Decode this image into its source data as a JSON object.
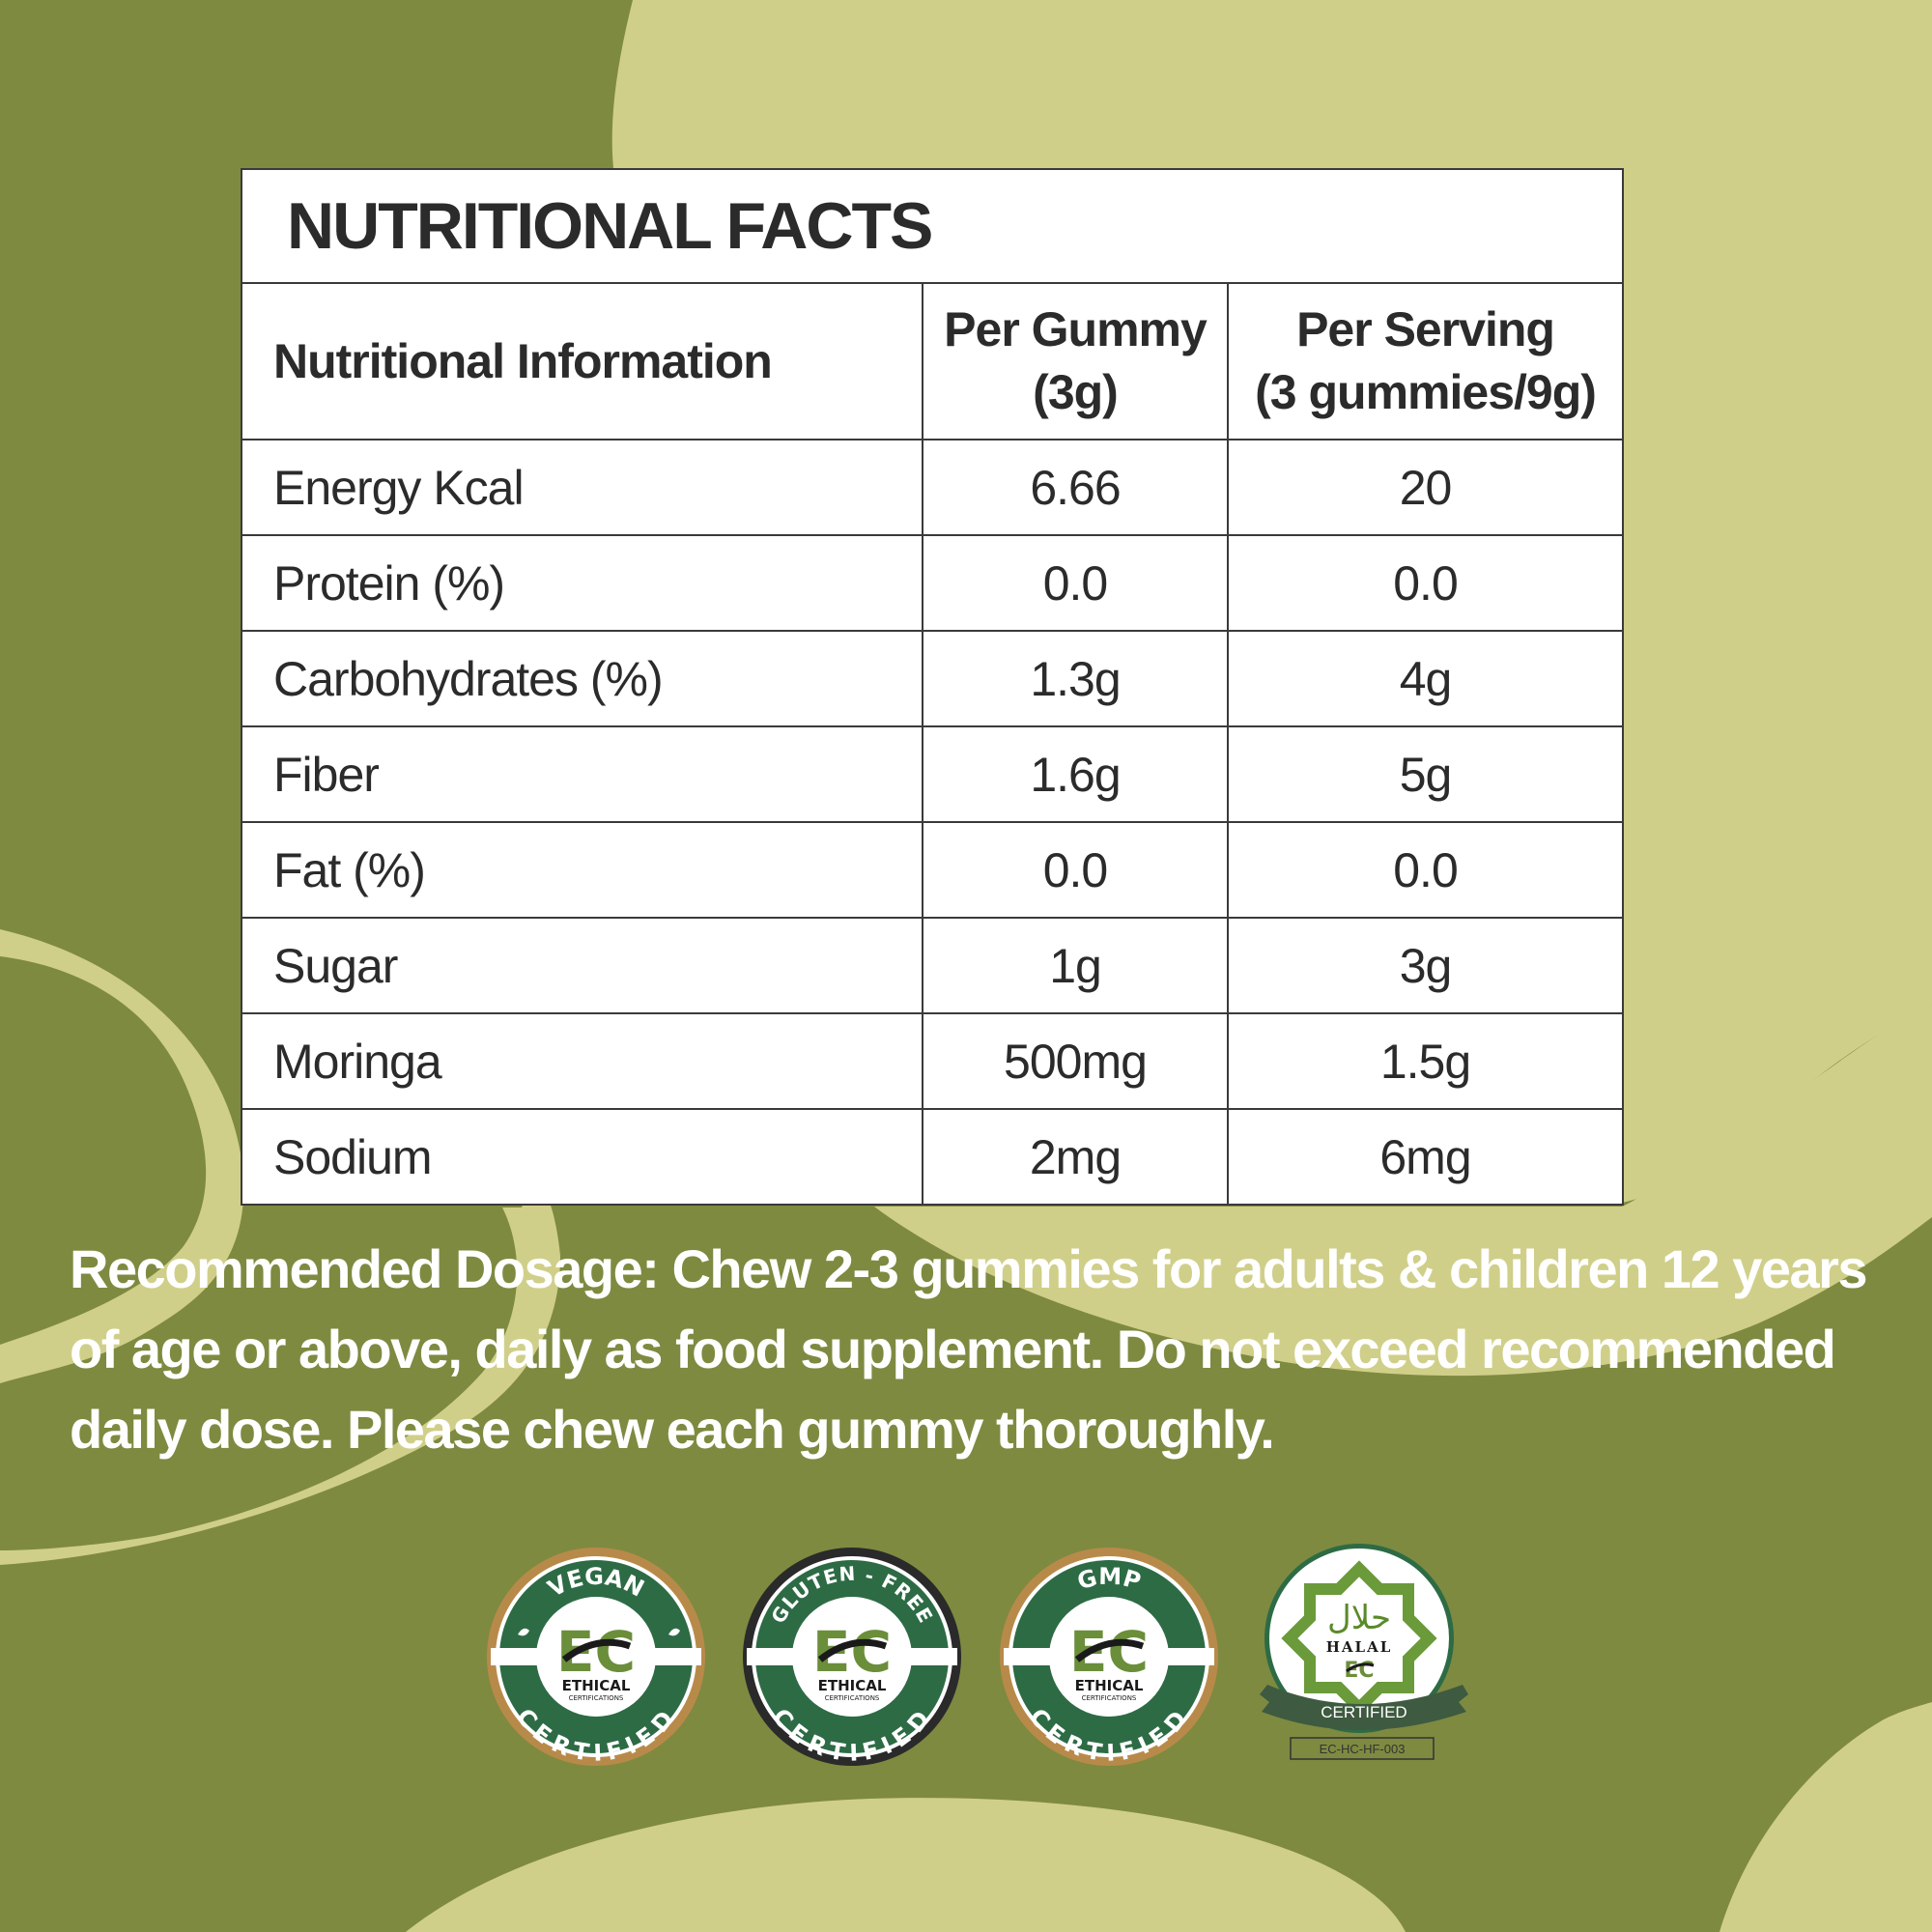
{
  "title": "NUTRITIONAL FACTS",
  "columns": {
    "info": "Nutritional Information",
    "per_gummy_line1": "Per Gummy",
    "per_gummy_line2": "(3g)",
    "per_serving_line1": "Per Serving",
    "per_serving_line2": "(3 gummies/9g)"
  },
  "rows": [
    {
      "label": "Energy Kcal",
      "per_gummy": "6.66",
      "per_serving": "20"
    },
    {
      "label": "Protein (%)",
      "per_gummy": "0.0",
      "per_serving": "0.0"
    },
    {
      "label": "Carbohydrates (%)",
      "per_gummy": "1.3g",
      "per_serving": "4g"
    },
    {
      "label": "Fiber",
      "per_gummy": "1.6g",
      "per_serving": "5g"
    },
    {
      "label": "Fat (%)",
      "per_gummy": "0.0",
      "per_serving": "0.0"
    },
    {
      "label": "Sugar",
      "per_gummy": "1g",
      "per_serving": "3g"
    },
    {
      "label": "Moringa",
      "per_gummy": "500mg",
      "per_serving": "1.5g"
    },
    {
      "label": "Sodium",
      "per_gummy": "2mg",
      "per_serving": "6mg"
    }
  ],
  "dosage": {
    "line1": "Recommended Dosage: Chew 2-3 gummies for adults & children 12 years",
    "line2": "of age or above, daily as food supplement. Do not exceed recommended",
    "line3": "daily dose. Please chew each gummy thoroughly."
  },
  "badges": {
    "vegan": {
      "top": "VEGAN",
      "bottom": "CERTIFIED",
      "brand": "ETHICAL",
      "brand_sub": "CERTIFICATIONS"
    },
    "gluten_free": {
      "top": "GLUTEN - FREE",
      "bottom": "CERTIFIED",
      "brand": "ETHICAL",
      "brand_sub": "CERTIFICATIONS"
    },
    "gmp": {
      "top": "GMP",
      "bottom": "CERTIFIED",
      "brand": "ETHICAL",
      "brand_sub": "CERTIFICATIONS"
    },
    "halal": {
      "arabic": "حلال",
      "word": "HALAL",
      "ribbon": "CERTIFIED",
      "code": "EC-HC-HF-003"
    }
  },
  "colors": {
    "background_dark": "#7e8a40",
    "background_light": "#d0cf89",
    "badge_green": "#2d6b45",
    "badge_gold": "#b88a4a",
    "badge_black": "#2a2a2a"
  }
}
